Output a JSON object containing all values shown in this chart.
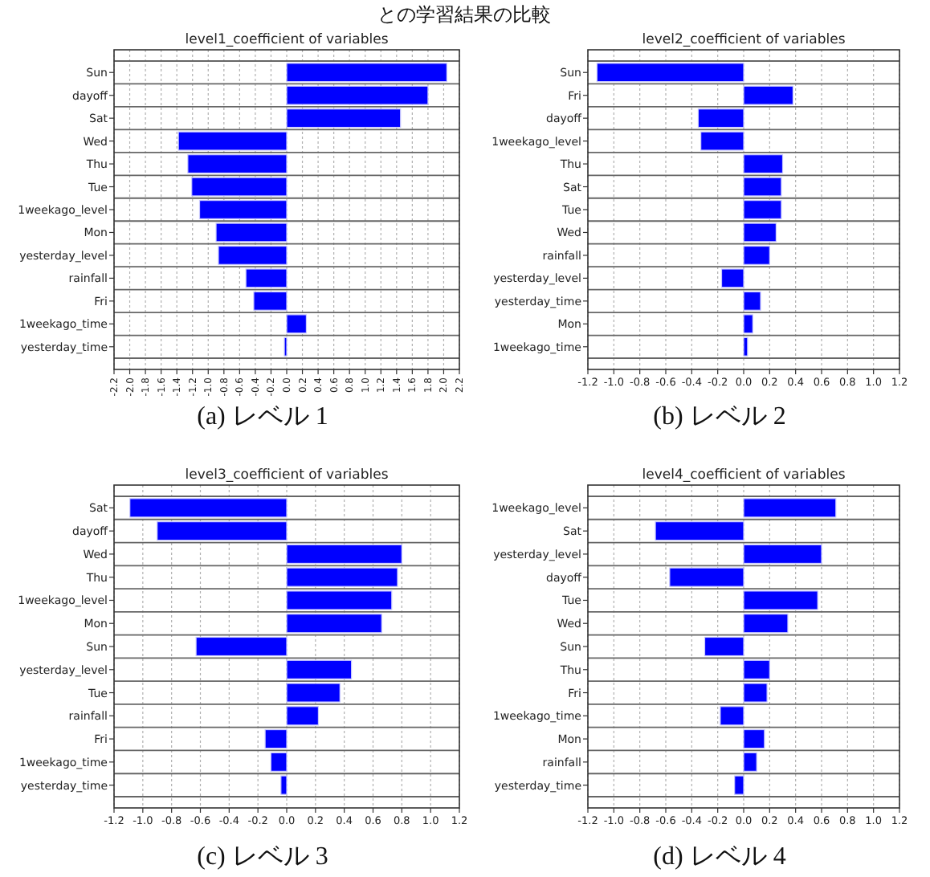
{
  "chart_data": [
    {
      "type": "bar",
      "orientation": "horizontal",
      "title": "level1_coefficient of variables",
      "color": "#0000ff",
      "grid": true,
      "categories": [
        "Sun",
        "dayoff",
        "Sat",
        "Wed",
        "Thu",
        "Tue",
        "1weekago_level",
        "Mon",
        "yesterday_level",
        "rainfall",
        "Fri",
        "1weekago_time",
        "yesterday_time"
      ],
      "values": [
        2.04,
        1.8,
        1.45,
        -1.38,
        -1.26,
        -1.21,
        -1.11,
        -0.9,
        -0.87,
        -0.52,
        -0.42,
        0.25,
        -0.03
      ],
      "xlim": [
        -2.2,
        2.2
      ],
      "xticks": [
        {
          "value": -2.2,
          "label": "-2.2"
        },
        {
          "value": -2.0,
          "label": "-2.0"
        },
        {
          "value": -1.8,
          "label": "-1.8"
        },
        {
          "value": -1.6,
          "label": "-1.6"
        },
        {
          "value": -1.4,
          "label": "-1.4"
        },
        {
          "value": -1.2,
          "label": "-1.2"
        },
        {
          "value": -1.0,
          "label": "-1.0"
        },
        {
          "value": -0.8,
          "label": "-0.8"
        },
        {
          "value": -0.6,
          "label": "-0.6"
        },
        {
          "value": -0.4,
          "label": "-0.4"
        },
        {
          "value": -0.2,
          "label": "-0.2"
        },
        {
          "value": 0,
          "label": "0.0"
        },
        {
          "value": 0.2,
          "label": "0.2"
        },
        {
          "value": 0.4,
          "label": "0.4"
        },
        {
          "value": 0.6,
          "label": "0.6"
        },
        {
          "value": 0.8,
          "label": "0.8"
        },
        {
          "value": 1.0,
          "label": "1.0"
        },
        {
          "value": 1.2,
          "label": "1.2"
        },
        {
          "value": 1.4,
          "label": "1.4"
        },
        {
          "value": 1.6,
          "label": "1.6"
        },
        {
          "value": 1.8,
          "label": "1.8"
        },
        {
          "value": 2.0,
          "label": "2.0"
        },
        {
          "value": 2.2,
          "label": "2.2"
        }
      ],
      "annotations": [
        "との学習結果の比較",
        "(a) レベル 1"
      ]
    },
    {
      "type": "bar",
      "orientation": "horizontal",
      "title": "level2_coefficient of variables",
      "color": "#0000ff",
      "grid": true,
      "categories": [
        "Sun",
        "Fri",
        "dayoff",
        "1weekago_level",
        "Thu",
        "Sat",
        "Tue",
        "Wed",
        "rainfall",
        "yesterday_level",
        "yesterday_time",
        "Mon",
        "1weekago_time"
      ],
      "values": [
        -1.13,
        0.38,
        -0.35,
        -0.33,
        0.3,
        0.29,
        0.29,
        0.25,
        0.2,
        -0.17,
        0.13,
        0.07,
        0.03
      ],
      "xlim": [
        -1.2,
        1.2
      ],
      "xticks": [
        {
          "value": -1.2,
          "label": "-1.2"
        },
        {
          "value": -1.0,
          "label": "-1.0"
        },
        {
          "value": -0.8,
          "label": "-0.8"
        },
        {
          "value": -0.6,
          "label": "-0.6"
        },
        {
          "value": -0.4,
          "label": "-0.4"
        },
        {
          "value": -0.2,
          "label": "-0.2"
        },
        {
          "value": 0,
          "label": "0.0"
        },
        {
          "value": 0.2,
          "label": "0.2"
        },
        {
          "value": 0.4,
          "label": "0.4"
        },
        {
          "value": 0.6,
          "label": "0.6"
        },
        {
          "value": 0.8,
          "label": "0.8"
        },
        {
          "value": 1.0,
          "label": "1.0"
        },
        {
          "value": 1.2,
          "label": "1.2"
        }
      ],
      "annotations": [
        "(b) レベル 2"
      ]
    },
    {
      "type": "bar",
      "orientation": "horizontal",
      "title": "level3_coefficient of variables",
      "color": "#0000ff",
      "grid": true,
      "categories": [
        "Sat",
        "dayoff",
        "Wed",
        "Thu",
        "1weekago_level",
        "Mon",
        "Sun",
        "yesterday_level",
        "Tue",
        "rainfall",
        "Fri",
        "1weekago_time",
        "yesterday_time"
      ],
      "values": [
        -1.09,
        -0.9,
        0.8,
        0.77,
        0.73,
        0.66,
        -0.63,
        0.45,
        0.37,
        0.22,
        -0.15,
        -0.11,
        -0.04
      ],
      "xlim": [
        -1.2,
        1.2
      ],
      "xticks": [
        {
          "value": -1.2,
          "label": "-1.2"
        },
        {
          "value": -1.0,
          "label": "-1.0"
        },
        {
          "value": -0.8,
          "label": "-0.8"
        },
        {
          "value": -0.6,
          "label": "-0.6"
        },
        {
          "value": -0.4,
          "label": "-0.4"
        },
        {
          "value": -0.2,
          "label": "-0.2"
        },
        {
          "value": 0,
          "label": "0.0"
        },
        {
          "value": 0.2,
          "label": "0.2"
        },
        {
          "value": 0.4,
          "label": "0.4"
        },
        {
          "value": 0.6,
          "label": "0.6"
        },
        {
          "value": 0.8,
          "label": "0.8"
        },
        {
          "value": 1.0,
          "label": "1.0"
        },
        {
          "value": 1.2,
          "label": "1.2"
        }
      ],
      "annotations": [
        "(c) レベル 3"
      ]
    },
    {
      "type": "bar",
      "orientation": "horizontal",
      "title": "level4_coefficient of variables",
      "color": "#0000ff",
      "grid": true,
      "categories": [
        "1weekago_level",
        "Sat",
        "yesterday_level",
        "dayoff",
        "Tue",
        "Wed",
        "Sun",
        "Thu",
        "Fri",
        "1weekago_time",
        "Mon",
        "rainfall",
        "yesterday_time"
      ],
      "values": [
        0.71,
        -0.68,
        0.6,
        -0.57,
        0.57,
        0.34,
        -0.3,
        0.2,
        0.18,
        -0.18,
        0.16,
        0.1,
        -0.07
      ],
      "xlim": [
        -1.2,
        1.2
      ],
      "xticks": [
        {
          "value": -1.2,
          "label": "-1.2"
        },
        {
          "value": -1.0,
          "label": "-1.0"
        },
        {
          "value": -0.8,
          "label": "-0.8"
        },
        {
          "value": -0.6,
          "label": "-0.6"
        },
        {
          "value": -0.4,
          "label": "-0.4"
        },
        {
          "value": -0.2,
          "label": "-0.2"
        },
        {
          "value": 0,
          "label": "0.0"
        },
        {
          "value": 0.2,
          "label": "0.2"
        },
        {
          "value": 0.4,
          "label": "0.4"
        },
        {
          "value": 0.6,
          "label": "0.6"
        },
        {
          "value": 0.8,
          "label": "0.8"
        },
        {
          "value": 1.0,
          "label": "1.0"
        },
        {
          "value": 1.2,
          "label": "1.2"
        }
      ],
      "annotations": [
        "(d) レベル 4"
      ]
    }
  ]
}
